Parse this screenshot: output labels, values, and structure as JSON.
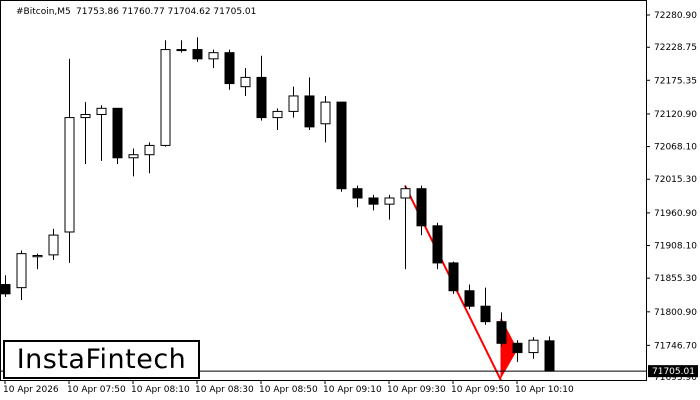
{
  "chart_data": {
    "type": "candlestick",
    "header": {
      "symbol": "#Bitcoin,M5",
      "ohlc": "71753.86 71760.77 71704.62 71705.01"
    },
    "y_axis": {
      "min": 71690,
      "max": 72300,
      "ticks": [
        72280.9,
        72228.75,
        72175.35,
        72120.9,
        72068.1,
        72015.3,
        71960.9,
        71908.1,
        71855.3,
        71800.9,
        71746.7
      ],
      "tick_labels": [
        "72280.90",
        "72228.75",
        "72175.35",
        "72120.90",
        "72068.10",
        "72015.30",
        "71960.90",
        "71908.10",
        "71855.30",
        "71800.90",
        "71746.70"
      ],
      "bottom_label": "71693.90"
    },
    "x_axis": {
      "ticks": [
        {
          "index": 0,
          "label": "10 Apr 2026"
        },
        {
          "index": 4,
          "label": "10 Apr 07:50"
        },
        {
          "index": 8,
          "label": "10 Apr 08:10"
        },
        {
          "index": 12,
          "label": "10 Apr 08:30"
        },
        {
          "index": 16,
          "label": "10 Apr 08:50"
        },
        {
          "index": 20,
          "label": "10 Apr 09:10"
        },
        {
          "index": 24,
          "label": "10 Apr 09:30"
        },
        {
          "index": 28,
          "label": "10 Apr 09:50"
        },
        {
          "index": 32,
          "label": "10 Apr 10:10"
        }
      ]
    },
    "current_price": {
      "value": 71705.01,
      "label": "71705.01"
    },
    "candles": [
      {
        "o": 71845,
        "h": 71860,
        "l": 71825,
        "c": 71830
      },
      {
        "o": 71840,
        "h": 71900,
        "l": 71820,
        "c": 71895
      },
      {
        "o": 71890,
        "h": 71895,
        "l": 71870,
        "c": 71892
      },
      {
        "o": 71893,
        "h": 71935,
        "l": 71885,
        "c": 71925
      },
      {
        "o": 71930,
        "h": 72210,
        "l": 71880,
        "c": 72115
      },
      {
        "o": 72115,
        "h": 72140,
        "l": 72040,
        "c": 72120
      },
      {
        "o": 72120,
        "h": 72135,
        "l": 72045,
        "c": 72130
      },
      {
        "o": 72130,
        "h": 72130,
        "l": 72040,
        "c": 72050
      },
      {
        "o": 72050,
        "h": 72065,
        "l": 72020,
        "c": 72055
      },
      {
        "o": 72055,
        "h": 72075,
        "l": 72025,
        "c": 72070
      },
      {
        "o": 72070,
        "h": 72240,
        "l": 72068,
        "c": 72225
      },
      {
        "o": 72225,
        "h": 72240,
        "l": 72220,
        "c": 72225
      },
      {
        "o": 72225,
        "h": 72245,
        "l": 72205,
        "c": 72210
      },
      {
        "o": 72210,
        "h": 72225,
        "l": 72195,
        "c": 72220
      },
      {
        "o": 72220,
        "h": 72225,
        "l": 72160,
        "c": 72170
      },
      {
        "o": 72165,
        "h": 72195,
        "l": 72150,
        "c": 72180
      },
      {
        "o": 72180,
        "h": 72215,
        "l": 72110,
        "c": 72115
      },
      {
        "o": 72115,
        "h": 72130,
        "l": 72095,
        "c": 72125
      },
      {
        "o": 72125,
        "h": 72165,
        "l": 72115,
        "c": 72150
      },
      {
        "o": 72150,
        "h": 72180,
        "l": 72095,
        "c": 72100
      },
      {
        "o": 72105,
        "h": 72150,
        "l": 72075,
        "c": 72140
      },
      {
        "o": 72140,
        "h": 72140,
        "l": 71995,
        "c": 72000
      },
      {
        "o": 72000,
        "h": 72005,
        "l": 71970,
        "c": 71985
      },
      {
        "o": 71985,
        "h": 71990,
        "l": 71965,
        "c": 71975
      },
      {
        "o": 71975,
        "h": 71990,
        "l": 71950,
        "c": 71985
      },
      {
        "o": 71985,
        "h": 72005,
        "l": 71870,
        "c": 72000
      },
      {
        "o": 72000,
        "h": 72005,
        "l": 71925,
        "c": 71940
      },
      {
        "o": 71940,
        "h": 71945,
        "l": 71870,
        "c": 71880
      },
      {
        "o": 71880,
        "h": 71882,
        "l": 71830,
        "c": 71835
      },
      {
        "o": 71835,
        "h": 71845,
        "l": 71805,
        "c": 71810
      },
      {
        "o": 71810,
        "h": 71840,
        "l": 71780,
        "c": 71785
      },
      {
        "o": 71785,
        "h": 71800,
        "l": 71745,
        "c": 71750
      },
      {
        "o": 71750,
        "h": 71755,
        "l": 71720,
        "c": 71735
      },
      {
        "o": 71735,
        "h": 71760,
        "l": 71725,
        "c": 71755
      },
      {
        "o": 71754,
        "h": 71761,
        "l": 71705,
        "c": 71705
      }
    ],
    "annotations": {
      "pattern": "bearish pennant",
      "pole": {
        "from": {
          "index": 25,
          "value": 72005
        },
        "to": {
          "index": 31,
          "value": 71690
        }
      },
      "pennant": [
        {
          "index": 31,
          "value": 71790
        },
        {
          "index": 32,
          "value": 71740
        },
        {
          "index": 31,
          "value": 71695
        }
      ]
    }
  },
  "colors": {
    "background": "#ffffff",
    "bull_fill": "#ffffff",
    "bear_fill": "#000000",
    "candle_outline": "#000000",
    "pattern": "#ff0000",
    "price_line": "#000000"
  },
  "logo": {
    "text": "InstaFintech"
  }
}
